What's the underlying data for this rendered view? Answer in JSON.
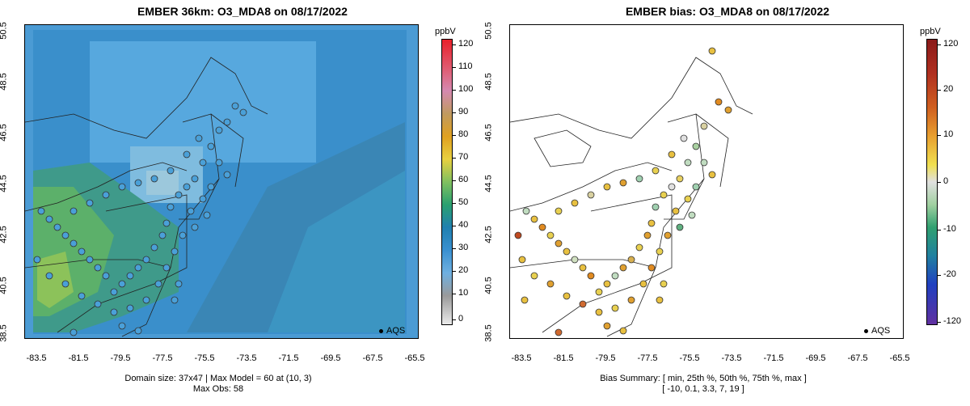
{
  "left": {
    "title": "EMBER 36km: O3_MDA8 on 08/17/2022",
    "subtitle_line1": "Domain size: 37x47 | Max Model = 60 at (10, 3)",
    "subtitle_line2": "Max Obs: 58",
    "colorbar_label": "ppbV",
    "colorbar_ticks": [
      "120",
      "110",
      "100",
      "90",
      "80",
      "70",
      "60",
      "50",
      "40",
      "30",
      "20",
      "10",
      "0"
    ],
    "legend": "AQS"
  },
  "right": {
    "title": "EMBER bias: O3_MDA8 on 08/17/2022",
    "subtitle_line1": "Bias Summary: [ min, 25th %, 50th %, 75th %, max ]",
    "subtitle_line2": "[ -10,  0.1,  3.3,  7,  19 ]",
    "colorbar_label": "ppbV",
    "colorbar_ticks": [
      "120",
      "20",
      "10",
      "0",
      "-10",
      "-20",
      "-120"
    ],
    "legend": "AQS"
  },
  "axes": {
    "y_ticks": [
      "50.5",
      "48.5",
      "46.5",
      "44.5",
      "42.5",
      "40.5",
      "38.5"
    ],
    "x_ticks": [
      "-83.5",
      "-81.5",
      "-79.5",
      "-77.5",
      "-75.5",
      "-73.5",
      "-71.5",
      "-69.5",
      "-67.5",
      "-65.5"
    ]
  },
  "colors": {
    "ocean_model": "#3d8fc7",
    "land_model": "#4a9fd8",
    "green_region": "#4aa866",
    "water_bias": "#ffffff"
  }
}
